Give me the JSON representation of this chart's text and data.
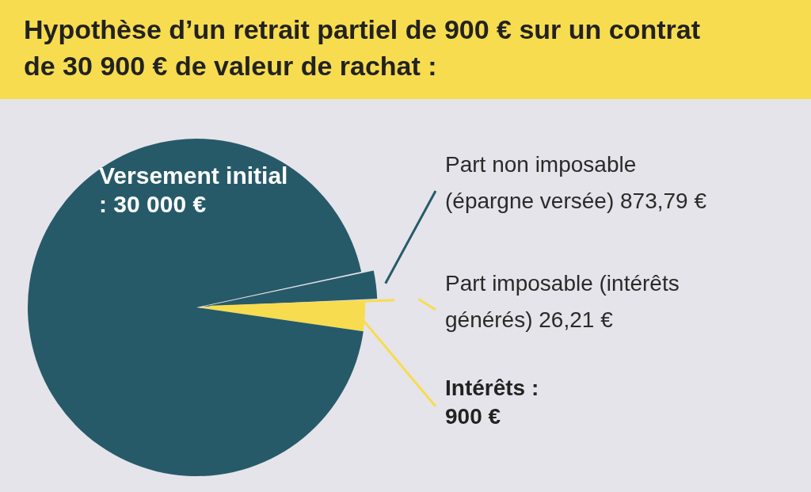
{
  "chart_data": {
    "type": "pie",
    "title": "Hypothèse d’un retrait partiel de 900 € sur un contrat de 30 900 € de valeur de rachat :",
    "categories": [
      "Intérêts : 900 €",
      "Versement initial : 30 000 €",
      "Part non imposable (épargne versée) 873,79 €",
      "Part imposable (intérêts générés) 26,21 €"
    ],
    "values": [
      900,
      30000,
      873.79,
      26.21
    ],
    "colors": [
      "#f7dc4f",
      "#275a69",
      "#275a69",
      "#f7dc4f"
    ]
  }
}
